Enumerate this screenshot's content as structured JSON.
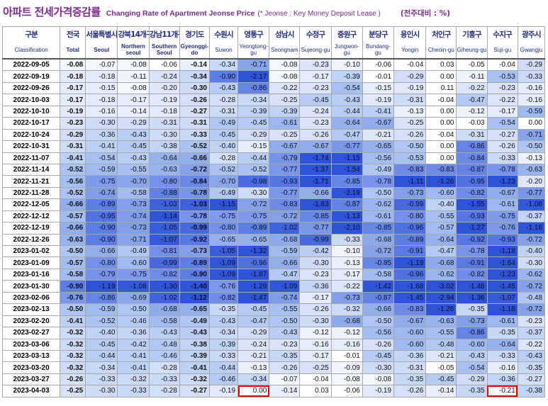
{
  "title": {
    "korean": "아파트 전세가격증감률",
    "english": "Changing Rate of Apartment Jeonse Price",
    "note": "(* Jeonse : Key Money Deposit Lease )",
    "unit": "(전주대비 : %)"
  },
  "columns": [
    {
      "ko": "구분",
      "en": "Classification"
    },
    {
      "ko": "전국",
      "en": "Total"
    },
    {
      "ko": "서울특별시",
      "en": "Seoul"
    },
    {
      "ko": "강북14개구",
      "en": "Northern seoul"
    },
    {
      "ko": "강남11개구",
      "en": "Southern Seoul"
    },
    {
      "ko": "경기도",
      "en": "Gyeonggi-do"
    },
    {
      "ko": "수원시",
      "en": "Suwon"
    },
    {
      "ko": "영통구",
      "en": "Yeongtong-gu"
    },
    {
      "ko": "성남시",
      "en": "Seongnam"
    },
    {
      "ko": "수정구",
      "en": "Sujeong-gu"
    },
    {
      "ko": "중원구",
      "en": "Jungwon-gu"
    },
    {
      "ko": "분당구",
      "en": "Bundang-gu"
    },
    {
      "ko": "용인시",
      "en": "Yongin"
    },
    {
      "ko": "처인구",
      "en": "Cheoin-gu"
    },
    {
      "ko": "기흥구",
      "en": "Giheung-gu"
    },
    {
      "ko": "수지구",
      "en": "Suji-gu"
    },
    {
      "ko": "광주시",
      "en": "Gwangju"
    }
  ],
  "rows": [
    {
      "date": "2022-09-05",
      "v": [
        "-0.08",
        "-0.07",
        "-0.08",
        "-0.06",
        "-0.14",
        "-0.34",
        "-0.71",
        "-0.08",
        "-0.23",
        "-0.10",
        "-0.06",
        "-0.04",
        "0.03",
        "-0.05",
        "-0.04",
        "-0.29"
      ]
    },
    {
      "date": "2022-09-19",
      "v": [
        "-0.18",
        "-0.18",
        "-0.11",
        "-0.24",
        "-0.34",
        "-0.90",
        "-2.17",
        "-0.08",
        "-0.17",
        "-0.39",
        "-0.01",
        "-0.29",
        "0.00",
        "-0.11",
        "-0.53",
        "-0.33"
      ]
    },
    {
      "date": "2022-09-26",
      "v": [
        "-0.17",
        "-0.15",
        "-0.08",
        "-0.20",
        "-0.30",
        "-0.43",
        "-0.86",
        "-0.22",
        "-0.23",
        "-0.54",
        "-0.15",
        "-0.19",
        "0.11",
        "-0.22",
        "-0.23",
        "-0.16"
      ]
    },
    {
      "date": "2022-10-03",
      "v": [
        "-0.17",
        "-0.18",
        "-0.17",
        "-0.19",
        "-0.26",
        "-0.28",
        "-0.34",
        "-0.25",
        "-0.45",
        "-0.43",
        "-0.19",
        "-0.31",
        "-0.04",
        "-0.47",
        "-0.22",
        "-0.16"
      ]
    },
    {
      "date": "2022-10-10",
      "v": [
        "-0.19",
        "-0.16",
        "-0.14",
        "-0.18",
        "-0.27",
        "-0.31",
        "-0.39",
        "-0.39",
        "-0.24",
        "-0.44",
        "-0.41",
        "-0.13",
        "0.00",
        "-0.12",
        "-0.17",
        "-0.59"
      ]
    },
    {
      "date": "2022-10-17",
      "v": [
        "-0.23",
        "-0.30",
        "-0.29",
        "-0.31",
        "-0.31",
        "-0.49",
        "-0.45",
        "-0.61",
        "-0.23",
        "-0.64",
        "-0.67",
        "-0.25",
        "0.00",
        "-0.03",
        "-0.54",
        "0.00"
      ]
    },
    {
      "date": "2022-10-24",
      "v": [
        "-0.29",
        "-0.36",
        "-0.43",
        "-0.30",
        "-0.33",
        "-0.45",
        "-0.29",
        "-0.25",
        "-0.26",
        "-0.47",
        "-0.21",
        "-0.26",
        "-0.04",
        "-0.31",
        "-0.27",
        "-0.71"
      ]
    },
    {
      "date": "2022-10-31",
      "v": [
        "-0.31",
        "-0.41",
        "-0.45",
        "-0.38",
        "-0.52",
        "-0.40",
        "-0.15",
        "-0.67",
        "-0.67",
        "-0.77",
        "-0.65",
        "-0.50",
        "0.00",
        "-0.86",
        "-0.26",
        "-0.50"
      ]
    },
    {
      "date": "2022-11-07",
      "v": [
        "-0.41",
        "-0.54",
        "-0.43",
        "-0.64",
        "-0.66",
        "-0.28",
        "-0.44",
        "-0.79",
        "-1.74",
        "-1.15",
        "-0.56",
        "-0.53",
        "0.00",
        "-0.84",
        "-0.33",
        "-0.13"
      ]
    },
    {
      "date": "2022-11-14",
      "v": [
        "-0.52",
        "-0.59",
        "-0.55",
        "-0.63",
        "-0.72",
        "-0.52",
        "-0.52",
        "-0.77",
        "-1.37",
        "-1.54",
        "-0.49",
        "-0.83",
        "-0.83",
        "-0.87",
        "-0.78",
        "-0.63"
      ]
    },
    {
      "date": "2022-11-21",
      "v": [
        "-0.56",
        "-0.75",
        "-0.70",
        "-0.80",
        "-0.84",
        "-0.70",
        "-0.98",
        "-0.93",
        "-1.71",
        "-0.85",
        "-0.78",
        "-1.11",
        "-1.26",
        "-0.95",
        "-1.23",
        "-0.20"
      ]
    },
    {
      "date": "2022-11-28",
      "v": [
        "-0.52",
        "-0.74",
        "-0.58",
        "-0.88",
        "-0.78",
        "-0.49",
        "-0.30",
        "-0.77",
        "-0.66",
        "-2.19",
        "-0.50",
        "-0.73",
        "-0.60",
        "-0.82",
        "-0.67",
        "-0.77"
      ]
    },
    {
      "date": "2022-12-05",
      "v": [
        "-0.66",
        "-0.89",
        "-0.73",
        "-1.03",
        "-1.03",
        "-1.15",
        "-0.72",
        "-0.83",
        "-1.83",
        "-0.87",
        "-0.62",
        "-0.99",
        "-0.40",
        "-1.55",
        "-0.61",
        "-1.08"
      ]
    },
    {
      "date": "2022-12-12",
      "v": [
        "-0.57",
        "-0.95",
        "-0.74",
        "-1.14",
        "-0.78",
        "-0.75",
        "-0.75",
        "-0.72",
        "-0.85",
        "-1.13",
        "-0.61",
        "-0.80",
        "-0.55",
        "-0.93",
        "-0.75",
        "-0.37"
      ]
    },
    {
      "date": "2022-12-19",
      "v": [
        "-0.66",
        "-0.90",
        "-0.73",
        "-1.05",
        "-0.99",
        "-0.80",
        "-0.89",
        "-1.02",
        "-0.77",
        "-2.10",
        "-0.85",
        "-0.96",
        "-0.57",
        "-1.27",
        "-0.76",
        "-1.16"
      ]
    },
    {
      "date": "2022-12-26",
      "v": [
        "-0.63",
        "-0.90",
        "-0.71",
        "-1.07",
        "-0.92",
        "-0.65",
        "-0.65",
        "-0.68",
        "-0.99",
        "-0.33",
        "-0.68",
        "-0.89",
        "-0.64",
        "-0.92",
        "-0.93",
        "-0.72"
      ]
    },
    {
      "date": "2023-01-02",
      "v": [
        "-0.50",
        "-0.66",
        "-0.49",
        "-0.81",
        "-0.73",
        "-1.05",
        "-1.32",
        "-0.59",
        "-0.42",
        "-0.10",
        "-0.72",
        "-0.91",
        "-0.47",
        "-0.78",
        "-1.18",
        "-0.40"
      ]
    },
    {
      "date": "2023-01-09",
      "v": [
        "-0.57",
        "-0.80",
        "-0.60",
        "-0.99",
        "-0.89",
        "-1.09",
        "-0.96",
        "-0.66",
        "-0.30",
        "-0.13",
        "-0.85",
        "-1.19",
        "-0.68",
        "-0.91",
        "-1.64",
        "-0.30"
      ]
    },
    {
      "date": "2023-01-16",
      "v": [
        "-0.58",
        "-0.79",
        "-0.75",
        "-0.82",
        "-0.90",
        "-1.09",
        "-1.87",
        "-0.47",
        "-0.23",
        "-0.17",
        "-0.58",
        "-0.96",
        "-0.62",
        "-0.82",
        "-1.23",
        "-0.62"
      ]
    },
    {
      "date": "2023-01-30",
      "v": [
        "-0.90",
        "-1.19",
        "-1.08",
        "-1.30",
        "-1.40",
        "-0.76",
        "-1.29",
        "-1.09",
        "-0.36",
        "-0.22",
        "-1.42",
        "-1.68",
        "-3.02",
        "-1.48",
        "-1.45",
        "-0.72"
      ]
    },
    {
      "date": "2023-02-06",
      "v": [
        "-0.76",
        "-0.86",
        "-0.69",
        "-1.02",
        "-1.12",
        "-0.82",
        "-1.47",
        "-0.74",
        "-0.17",
        "-0.73",
        "-0.87",
        "-1.45",
        "-2.94",
        "-1.36",
        "-1.07",
        "-0.48"
      ]
    },
    {
      "date": "2023-02-13",
      "v": [
        "-0.50",
        "-0.59",
        "-0.50",
        "-0.68",
        "-0.65",
        "-0.35",
        "-0.45",
        "-0.55",
        "-0.26",
        "-0.32",
        "-0.66",
        "-0.83",
        "-1.26",
        "-0.35",
        "-1.18",
        "-0.72"
      ]
    },
    {
      "date": "2023-02-20",
      "v": [
        "-0.41",
        "-0.52",
        "-0.46",
        "-0.58",
        "-0.49",
        "-0.43",
        "-0.47",
        "-0.50",
        "-0.30",
        "-0.68",
        "-0.50",
        "-0.67",
        "-0.63",
        "-0.73",
        "-0.61",
        "-0.23"
      ]
    },
    {
      "date": "2023-02-27",
      "v": [
        "-0.32",
        "-0.40",
        "-0.36",
        "-0.43",
        "-0.43",
        "-0.34",
        "-0.29",
        "-0.43",
        "-0.12",
        "-0.12",
        "-0.56",
        "-0.60",
        "-0.55",
        "-0.86",
        "-0.35",
        "-0.37"
      ]
    },
    {
      "date": "2023-03-06",
      "v": [
        "-0.32",
        "-0.45",
        "-0.42",
        "-0.48",
        "-0.38",
        "-0.39",
        "-0.24",
        "-0.23",
        "-0.16",
        "-0.16",
        "-0.26",
        "-0.60",
        "-0.48",
        "-0.60",
        "-0.64",
        "-0.22"
      ]
    },
    {
      "date": "2023-03-13",
      "v": [
        "-0.32",
        "-0.44",
        "-0.41",
        "-0.46",
        "-0.39",
        "-0.33",
        "-0.21",
        "-0.35",
        "-0.17",
        "-0.01",
        "-0.45",
        "-0.36",
        "-0.21",
        "-0.43",
        "-0.33",
        "-0.43"
      ]
    },
    {
      "date": "2023-03-20",
      "v": [
        "-0.32",
        "-0.34",
        "-0.41",
        "-0.28",
        "-0.41",
        "-0.44",
        "-0.13",
        "-0.26",
        "-0.25",
        "-0.09",
        "-0.30",
        "-0.31",
        "-0.05",
        "-0.54",
        "-0.16",
        "-0.35"
      ]
    },
    {
      "date": "2023-03-27",
      "v": [
        "-0.26",
        "-0.33",
        "-0.32",
        "-0.33",
        "-0.32",
        "-0.46",
        "-0.34",
        "-0.07",
        "-0.04",
        "-0.08",
        "-0.08",
        "-0.35",
        "-0.45",
        "-0.29",
        "-0.36",
        "-0.27"
      ]
    },
    {
      "date": "2023-04-03",
      "v": [
        "-0.25",
        "-0.30",
        "-0.33",
        "-0.28",
        "-0.27",
        "-0.19",
        "0.00",
        "-0.14",
        "0.03",
        "-0.06",
        "-0.19",
        "-0.26",
        "-0.14",
        "-0.35",
        "-0.21",
        "-0.38"
      ]
    }
  ],
  "bold_columns": [
    0,
    4
  ],
  "highlighted_cells": [
    {
      "date": "2023-04-03",
      "column": "Yeongtong-gu"
    },
    {
      "date": "2023-04-03",
      "column": "Suji-gu"
    }
  ],
  "colors": {
    "title": "#7a2a8a",
    "header_text": "#1f2a7a",
    "highlight_border": "#e00000",
    "scale_light": "#ffffff",
    "scale_dark": "#2f54d8"
  }
}
